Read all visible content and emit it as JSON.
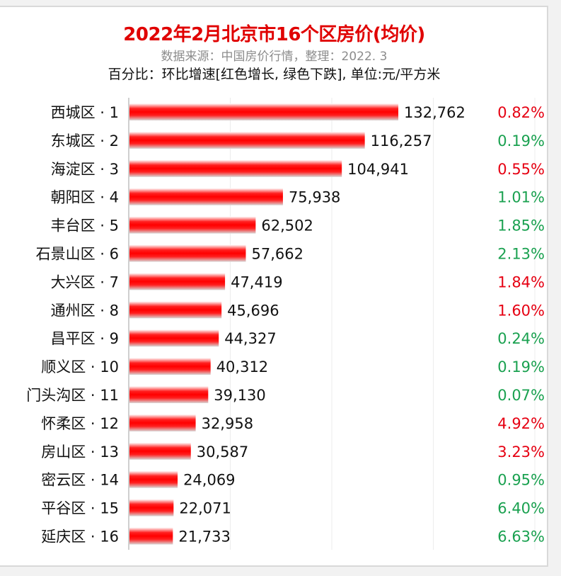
{
  "title": "2022年2月北京市16个区房价(均价)",
  "source_line": "数据来源：中国房价行情，整理：2022. 3",
  "note_line": "百分比：环比增速[红色增长, 绿色下跌], 单位:元/平方米",
  "colors": {
    "bar": "#ff0000",
    "increase": "#e60012",
    "decrease": "#1aa150"
  },
  "chart_data": {
    "type": "bar",
    "orientation": "horizontal",
    "xlim": [
      0,
      200000
    ],
    "grid": true,
    "categories": [
      "西城区 · 1",
      "东城区 · 2",
      "海淀区 · 3",
      "朝阳区 · 4",
      "丰台区 · 5",
      "石景山区 · 6",
      "大兴区 · 7",
      "通州区 · 8",
      "昌平区 · 9",
      "顺义区 · 10",
      "门头沟区 · 11",
      "怀柔区 · 12",
      "房山区 · 13",
      "密云区 · 14",
      "平谷区 · 15",
      "延庆区 · 16"
    ],
    "values": [
      132762,
      116257,
      104941,
      75938,
      62502,
      57662,
      47419,
      45696,
      44327,
      40312,
      39130,
      32958,
      30587,
      24069,
      22071,
      21733
    ],
    "value_labels": [
      "132,762",
      "116,257",
      "104,941",
      "75,938",
      "62,502",
      "57,662",
      "47,419",
      "45,696",
      "44,327",
      "40,312",
      "39,130",
      "32,958",
      "30,587",
      "24,069",
      "22,071",
      "21,733"
    ],
    "mom_change": [
      "0.82%",
      "0.19%",
      "0.55%",
      "1.01%",
      "1.85%",
      "2.13%",
      "1.84%",
      "1.60%",
      "0.24%",
      "0.19%",
      "0.07%",
      "4.92%",
      "3.23%",
      "0.95%",
      "6.40%",
      "6.63%"
    ],
    "mom_direction": [
      "up",
      "down",
      "up",
      "down",
      "down",
      "down",
      "up",
      "up",
      "down",
      "down",
      "down",
      "up",
      "up",
      "down",
      "down",
      "down"
    ]
  }
}
